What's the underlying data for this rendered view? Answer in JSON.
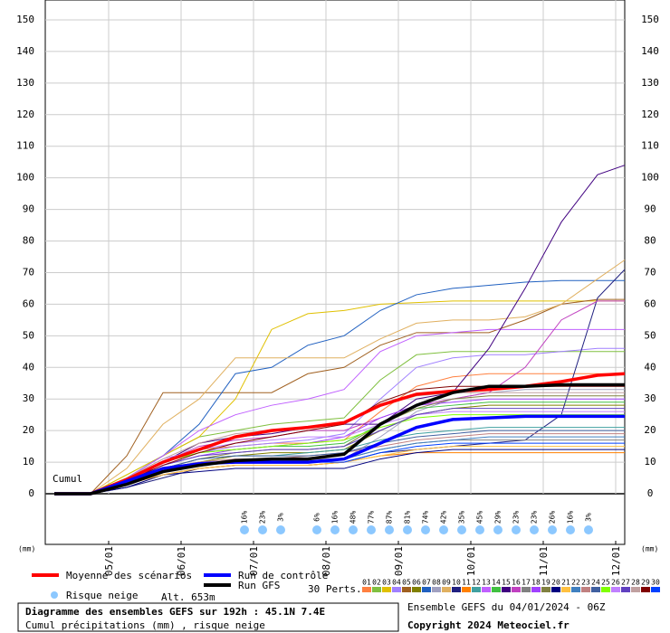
{
  "chart_data": {
    "type": "line",
    "title": "Diagramme des ensembles GEFS sur 192h : 45.1N 7.4E",
    "subtitle": "Cumul précipitations (mm) , risque neige",
    "y_label": "Cumul",
    "y_unit_left": "(mm)",
    "y_unit_right": "(mm)",
    "run_label": "Ensemble GEFS du 04/01/2024 - 06Z",
    "copyright": "Copyright 2024 Meteociel.fr",
    "snow_legend": "Risque neige",
    "altitude": "Alt. 653m",
    "perts_label": "30 Perts.",
    "ylim": [
      0,
      150
    ],
    "yticks": [
      0,
      10,
      20,
      30,
      40,
      50,
      60,
      70,
      80,
      90,
      100,
      110,
      120,
      130,
      140,
      150
    ],
    "xlim": [
      -3,
      189
    ],
    "xticks": [
      {
        "value": 18,
        "label": "05/01"
      },
      {
        "value": 42,
        "label": "06/01"
      },
      {
        "value": 66,
        "label": "07/01"
      },
      {
        "value": 90,
        "label": "08/01"
      },
      {
        "value": 114,
        "label": "09/01"
      },
      {
        "value": 138,
        "label": "10/01"
      },
      {
        "value": 162,
        "label": "11/01"
      },
      {
        "value": 186,
        "label": "12/01"
      }
    ],
    "grid": true,
    "x": [
      0,
      12,
      24,
      36,
      48,
      60,
      72,
      84,
      96,
      108,
      120,
      132,
      144,
      156,
      168,
      180,
      189
    ],
    "series": [
      {
        "name": "01",
        "color": "#ff8040",
        "values": [
          0,
          0,
          5,
          10,
          14,
          15,
          16,
          16,
          17,
          26,
          34,
          37,
          38,
          38,
          38,
          38,
          38
        ]
      },
      {
        "name": "02",
        "color": "#80c040",
        "values": [
          0,
          0,
          6,
          12,
          18,
          20,
          22,
          23,
          24,
          36,
          44,
          45,
          45,
          45,
          45,
          45,
          45
        ]
      },
      {
        "name": "03",
        "color": "#e0c000",
        "values": [
          0,
          0,
          6,
          12,
          18,
          30,
          52,
          57,
          58,
          60,
          60.5,
          61,
          61,
          61,
          61,
          61,
          61
        ]
      },
      {
        "name": "04",
        "color": "#a080ff",
        "values": [
          0,
          0,
          4,
          9,
          13,
          15,
          16,
          17,
          19,
          30,
          40,
          43,
          44,
          44,
          45,
          46,
          46
        ]
      },
      {
        "name": "05",
        "color": "#a06020",
        "values": [
          0,
          0,
          12,
          32,
          32,
          32,
          32,
          38,
          40,
          47,
          51,
          51,
          51,
          55,
          60,
          61.5,
          61.5
        ]
      },
      {
        "name": "06",
        "color": "#808000",
        "values": [
          0,
          0,
          4,
          8,
          10,
          12,
          13,
          13,
          14,
          20,
          25,
          27,
          28,
          28,
          28,
          28,
          28
        ]
      },
      {
        "name": "07",
        "color": "#2060c0",
        "values": [
          0,
          0,
          5,
          12,
          22,
          38,
          40,
          47,
          50,
          58,
          63,
          65,
          66,
          67,
          67.5,
          67.5,
          67.5
        ]
      },
      {
        "name": "08",
        "color": "#a0a0c0",
        "values": [
          0,
          0,
          3,
          8,
          10,
          11,
          11,
          11,
          11,
          18,
          26,
          30,
          32,
          33,
          33,
          33,
          33
        ]
      },
      {
        "name": "09",
        "color": "#e0b060",
        "values": [
          0,
          0,
          8,
          22,
          30,
          43,
          43,
          43,
          43,
          49,
          54,
          55,
          55,
          56,
          60,
          68,
          74
        ]
      },
      {
        "name": "10",
        "color": "#202080",
        "values": [
          0,
          0,
          2,
          5,
          8,
          9,
          9,
          9,
          10,
          13,
          14,
          15,
          16,
          17,
          25,
          62,
          71
        ]
      },
      {
        "name": "11",
        "color": "#ff8000",
        "values": [
          0,
          0,
          3,
          6,
          8,
          9,
          9,
          9,
          10,
          12,
          13,
          13,
          13,
          13,
          13,
          13,
          13
        ]
      },
      {
        "name": "12",
        "color": "#40a0a0",
        "values": [
          0,
          0,
          4,
          8,
          11,
          12,
          12,
          13,
          14,
          17,
          19,
          20,
          21,
          21,
          21,
          21,
          21
        ]
      },
      {
        "name": "13",
        "color": "#c060ff",
        "values": [
          0,
          0,
          5,
          12,
          20,
          25,
          28,
          30,
          33,
          45,
          50,
          51,
          52,
          52,
          52,
          52,
          52
        ]
      },
      {
        "name": "14",
        "color": "#40c040",
        "values": [
          0,
          0,
          5,
          10,
          13,
          14,
          15,
          15,
          16,
          22,
          27,
          28,
          29,
          29,
          29,
          29,
          29
        ]
      },
      {
        "name": "15",
        "color": "#400080",
        "values": [
          0,
          0,
          3,
          10,
          16,
          18,
          19,
          21,
          22,
          22,
          30,
          32,
          46,
          65,
          86,
          101,
          104
        ]
      },
      {
        "name": "16",
        "color": "#c040c0",
        "values": [
          0,
          0,
          4,
          10,
          15,
          17,
          18,
          20,
          20,
          24,
          28,
          30,
          32,
          40,
          55,
          61,
          61
        ]
      },
      {
        "name": "17",
        "color": "#808080",
        "values": [
          0,
          0,
          3,
          7,
          9,
          10,
          10,
          10,
          11,
          14,
          16,
          17,
          17,
          17,
          17,
          17,
          17
        ]
      },
      {
        "name": "18",
        "color": "#a040ff",
        "values": [
          0,
          0,
          4,
          9,
          12,
          14,
          15,
          16,
          18,
          24,
          28,
          29,
          30,
          30,
          30,
          30,
          30
        ]
      },
      {
        "name": "19",
        "color": "#808040",
        "values": [
          0,
          0,
          3,
          8,
          11,
          13,
          14,
          14,
          15,
          22,
          27,
          30,
          31,
          31,
          31,
          31,
          31
        ]
      },
      {
        "name": "20",
        "color": "#000080",
        "values": [
          0,
          0,
          2,
          6,
          7,
          8,
          8,
          8,
          8,
          11,
          13,
          14,
          14,
          14,
          14,
          14,
          14
        ]
      },
      {
        "name": "21",
        "color": "#ffc040",
        "values": [
          0,
          0,
          3,
          6,
          8,
          9,
          9,
          9,
          10,
          12,
          14,
          15,
          15,
          15,
          15,
          15,
          15
        ]
      },
      {
        "name": "22",
        "color": "#4080c0",
        "values": [
          0,
          0,
          3,
          7,
          9,
          10,
          10,
          10,
          11,
          14,
          16,
          17,
          18,
          18,
          18,
          18,
          18
        ]
      },
      {
        "name": "23",
        "color": "#c08080",
        "values": [
          0,
          0,
          4,
          8,
          10,
          11,
          11,
          12,
          13,
          15,
          17,
          18,
          19,
          19,
          19,
          19,
          19
        ]
      },
      {
        "name": "24",
        "color": "#4060a0",
        "values": [
          0,
          0,
          4,
          8,
          11,
          12,
          12,
          12,
          13,
          16,
          18,
          19,
          20,
          20,
          20,
          20,
          20
        ]
      },
      {
        "name": "25",
        "color": "#80ff00",
        "values": [
          0,
          0,
          5,
          10,
          13,
          14,
          15,
          16,
          17,
          21,
          24,
          25,
          25,
          25,
          25,
          25,
          25
        ]
      },
      {
        "name": "26",
        "color": "#c080ff",
        "values": [
          0,
          0,
          5,
          11,
          14,
          16,
          17,
          18,
          18,
          22,
          25,
          26,
          26,
          26,
          26,
          26,
          26
        ]
      },
      {
        "name": "27",
        "color": "#6040c0",
        "values": [
          0,
          0,
          4,
          9,
          12,
          13,
          14,
          14,
          15,
          20,
          25,
          27,
          27,
          27,
          27,
          27,
          27
        ]
      },
      {
        "name": "28",
        "color": "#c0a0a0",
        "values": [
          0,
          0,
          5,
          11,
          16,
          19,
          20,
          21,
          22,
          28,
          31,
          32,
          32,
          32,
          32,
          32,
          32
        ]
      },
      {
        "name": "29",
        "color": "#800000",
        "values": [
          0,
          0,
          4,
          9,
          13,
          16,
          18,
          20,
          22,
          29,
          33,
          34,
          34,
          34,
          34,
          34,
          34
        ]
      },
      {
        "name": "30",
        "color": "#0040ff",
        "values": [
          0,
          0,
          3,
          7,
          9,
          10,
          10,
          10,
          10,
          13,
          15,
          16,
          16,
          16,
          16,
          16,
          16
        ]
      },
      {
        "name": "Moyenne des scénarios",
        "color": "#ff0000",
        "values": [
          0,
          0,
          4.5,
          10,
          14,
          18,
          20,
          21,
          22.5,
          28,
          31.5,
          32.5,
          33,
          34,
          35.5,
          37.5,
          38
        ]
      },
      {
        "name": "Run de contrôle",
        "color": "#0000ff",
        "values": [
          0,
          0,
          4,
          8,
          9.5,
          10,
          10,
          10,
          11,
          16,
          21,
          23.5,
          24,
          24.5,
          24.5,
          24.5,
          24.5
        ]
      },
      {
        "name": "Run GFS",
        "color": "#000000",
        "values": [
          0,
          0,
          3,
          7,
          9,
          10.5,
          11,
          11,
          12.5,
          22,
          28,
          32,
          34,
          34,
          34.5,
          34.5,
          34.5
        ]
      }
    ],
    "snow_risk": {
      "x": [
        63,
        69,
        75,
        87,
        93,
        99,
        105,
        111,
        117,
        123,
        129,
        135,
        141,
        147,
        153,
        159,
        165,
        171,
        177
      ],
      "values": [
        16,
        23,
        3,
        6,
        16,
        48,
        77,
        87,
        81,
        74,
        42,
        35,
        45,
        29,
        23,
        23,
        26,
        16,
        3
      ],
      "value_labels": [
        "16%",
        "23%",
        "3%",
        "6%",
        "16%",
        "48%",
        "77%",
        "87%",
        "81%",
        "74%",
        "42%",
        "35%",
        "45%",
        "29%",
        "23%",
        "23%",
        "26%",
        "16%",
        "3%"
      ]
    }
  }
}
